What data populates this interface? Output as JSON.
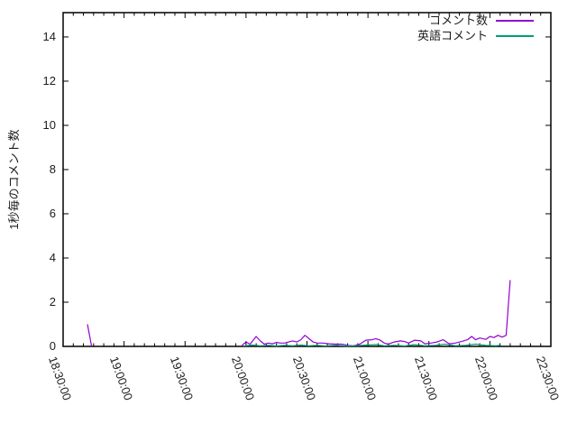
{
  "colors": {
    "background": "#ffffff",
    "axis": "#000000",
    "text": "#1c1c1c"
  },
  "chart_data": {
    "type": "line",
    "title": "",
    "xlabel": "",
    "ylabel": "1秒毎のコメント数",
    "grid": false,
    "legend_position": "top-right-inside",
    "x_axis": {
      "start": "18:30:00",
      "end": "22:30:00",
      "tick_labels": [
        "18:30:00",
        "19:00:00",
        "19:30:00",
        "20:00:00",
        "20:30:00",
        "21:00:00",
        "21:30:00",
        "22:00:00",
        "22:30:00"
      ],
      "minor_tick_minutes": 5,
      "tick_rotation_deg": 70
    },
    "y_axis": {
      "min": 0,
      "max": 15.1,
      "tick_values": [
        0,
        2,
        4,
        6,
        8,
        10,
        12,
        14
      ],
      "tick_labels": [
        "0",
        "2",
        "4",
        "6",
        "8",
        "10",
        "12",
        "14"
      ]
    },
    "series": [
      {
        "name": "コメント数",
        "color": "#9400d3",
        "segments": [
          [
            [
              "18:42",
              1.0
            ],
            [
              "18:44",
              0.0
            ]
          ],
          [
            [
              "19:58",
              0.05
            ],
            [
              "20:00",
              0.2
            ],
            [
              "20:02",
              0.1
            ],
            [
              "20:05",
              0.45
            ],
            [
              "20:07",
              0.25
            ],
            [
              "20:09",
              0.1
            ],
            [
              "20:11",
              0.15
            ],
            [
              "20:13",
              0.12
            ],
            [
              "20:15",
              0.18
            ],
            [
              "20:17",
              0.15
            ],
            [
              "20:19",
              0.15
            ],
            [
              "20:21",
              0.2
            ],
            [
              "20:23",
              0.25
            ],
            [
              "20:25",
              0.2
            ],
            [
              "20:27",
              0.3
            ],
            [
              "20:29",
              0.5
            ],
            [
              "20:31",
              0.35
            ],
            [
              "20:33",
              0.2
            ],
            [
              "20:35",
              0.15
            ],
            [
              "20:38",
              0.15
            ],
            [
              "20:41",
              0.12
            ],
            [
              "20:44",
              0.1
            ],
            [
              "20:47",
              0.1
            ],
            [
              "20:50",
              0.05
            ],
            [
              "20:53",
              0.03
            ],
            [
              "20:56",
              0.1
            ],
            [
              "20:59",
              0.28
            ],
            [
              "21:02",
              0.3
            ],
            [
              "21:04",
              0.35
            ],
            [
              "21:06",
              0.28
            ],
            [
              "21:08",
              0.15
            ],
            [
              "21:10",
              0.1
            ],
            [
              "21:13",
              0.2
            ],
            [
              "21:16",
              0.25
            ],
            [
              "21:18",
              0.22
            ],
            [
              "21:20",
              0.15
            ],
            [
              "21:23",
              0.28
            ],
            [
              "21:26",
              0.25
            ],
            [
              "21:28",
              0.12
            ],
            [
              "21:31",
              0.15
            ],
            [
              "21:34",
              0.2
            ],
            [
              "21:37",
              0.3
            ],
            [
              "21:40",
              0.12
            ],
            [
              "21:43",
              0.15
            ],
            [
              "21:46",
              0.22
            ],
            [
              "21:49",
              0.3
            ],
            [
              "21:51",
              0.45
            ],
            [
              "21:53",
              0.3
            ],
            [
              "21:55",
              0.38
            ],
            [
              "21:58",
              0.32
            ],
            [
              "22:00",
              0.45
            ],
            [
              "22:02",
              0.4
            ],
            [
              "22:04",
              0.5
            ],
            [
              "22:06",
              0.42
            ],
            [
              "22:08",
              0.5
            ],
            [
              "22:10",
              3.0
            ]
          ]
        ]
      },
      {
        "name": "英語コメント",
        "color": "#009e73",
        "segments": [
          [
            [
              "19:59",
              0.02
            ],
            [
              "20:03",
              0.06
            ],
            [
              "20:07",
              0.03
            ],
            [
              "20:11",
              0.05
            ],
            [
              "20:15",
              0.02
            ],
            [
              "20:19",
              0.05
            ],
            [
              "20:23",
              0.03
            ],
            [
              "20:27",
              0.06
            ],
            [
              "20:31",
              0.03
            ],
            [
              "20:35",
              0.05
            ],
            [
              "20:39",
              0.02
            ],
            [
              "20:44",
              0.05
            ],
            [
              "20:49",
              0.02
            ],
            [
              "20:54",
              0.03
            ],
            [
              "20:59",
              0.06
            ],
            [
              "21:04",
              0.08
            ],
            [
              "21:08",
              0.03
            ],
            [
              "21:13",
              0.05
            ],
            [
              "21:18",
              0.02
            ],
            [
              "21:23",
              0.08
            ],
            [
              "21:28",
              0.03
            ],
            [
              "21:33",
              0.05
            ],
            [
              "21:38",
              0.1
            ],
            [
              "21:43",
              0.03
            ],
            [
              "21:48",
              0.05
            ],
            [
              "21:53",
              0.1
            ],
            [
              "21:58",
              0.05
            ],
            [
              "22:03",
              0.03
            ],
            [
              "22:05",
              0.05
            ]
          ]
        ]
      }
    ]
  }
}
